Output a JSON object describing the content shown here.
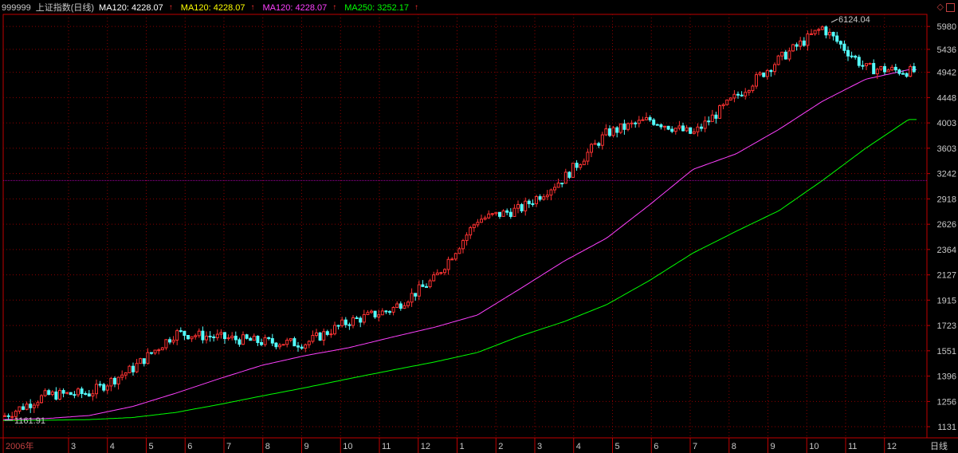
{
  "legend": {
    "code": "999999",
    "name": "上证指数(日线)",
    "ma1": "MA120: 4228.07",
    "ma2": "MA120: 4228.07",
    "ma3": "MA120: 4228.07",
    "ma4": "MA250: 3252.17"
  },
  "colors": {
    "background": "#000000",
    "grid": "#8b0000",
    "axis": "#c00000",
    "candle_up": "#ff3232",
    "candle_down": "#54ffff",
    "ma120": "#ff40ff",
    "ma250": "#00ff00",
    "text": "#c8c8c8",
    "year_label": "#c04040"
  },
  "chart_data": {
    "type": "candlestick",
    "series_name": "上证指数(日线)",
    "ylim": [
      1131,
      6124.04
    ],
    "y_ticks": [
      5980,
      5436,
      4942,
      4448,
      4003,
      3603,
      3242,
      2918,
      2626,
      2364,
      2127,
      1915,
      1723,
      1551,
      1396,
      1256,
      1131
    ],
    "x_tick_labels": [
      "2006年",
      "3",
      "4",
      "5",
      "6",
      "7",
      "8",
      "9",
      "10",
      "11",
      "12",
      "1",
      "2",
      "3",
      "4",
      "5",
      "6",
      "7",
      "8",
      "9",
      "10",
      "11",
      "12"
    ],
    "x_tick_month_index": [
      0,
      2,
      3,
      4,
      5,
      6,
      7,
      8,
      9,
      10,
      11,
      12,
      13,
      14,
      15,
      16,
      17,
      18,
      19,
      20,
      21,
      22,
      23
    ],
    "period_label": "日线",
    "high_annotation": "6124.04",
    "low_annotation": "1161.91",
    "reference_line": 3150,
    "close_monthly": [
      1180,
      1290,
      1300,
      1440,
      1670,
      1640,
      1610,
      1600,
      1750,
      1840,
      2090,
      2675,
      2800,
      3180,
      3840,
      4060,
      3820,
      4470,
      5220,
      5950,
      5030,
      4960
    ],
    "ma120_monthly": [
      1165,
      1170,
      1185,
      1230,
      1300,
      1380,
      1460,
      1520,
      1570,
      1640,
      1710,
      1800,
      2010,
      2250,
      2480,
      2850,
      3300,
      3520,
      3900,
      4380,
      4800,
      4995
    ],
    "ma250_monthly": [
      1160,
      1162,
      1165,
      1175,
      1200,
      1240,
      1285,
      1330,
      1380,
      1430,
      1480,
      1540,
      1650,
      1750,
      1880,
      2080,
      2330,
      2550,
      2780,
      3150,
      3600,
      4060
    ],
    "series": [
      {
        "name": "MA120",
        "current": 4228.07
      },
      {
        "name": "MA250",
        "current": 3252.17
      }
    ]
  }
}
